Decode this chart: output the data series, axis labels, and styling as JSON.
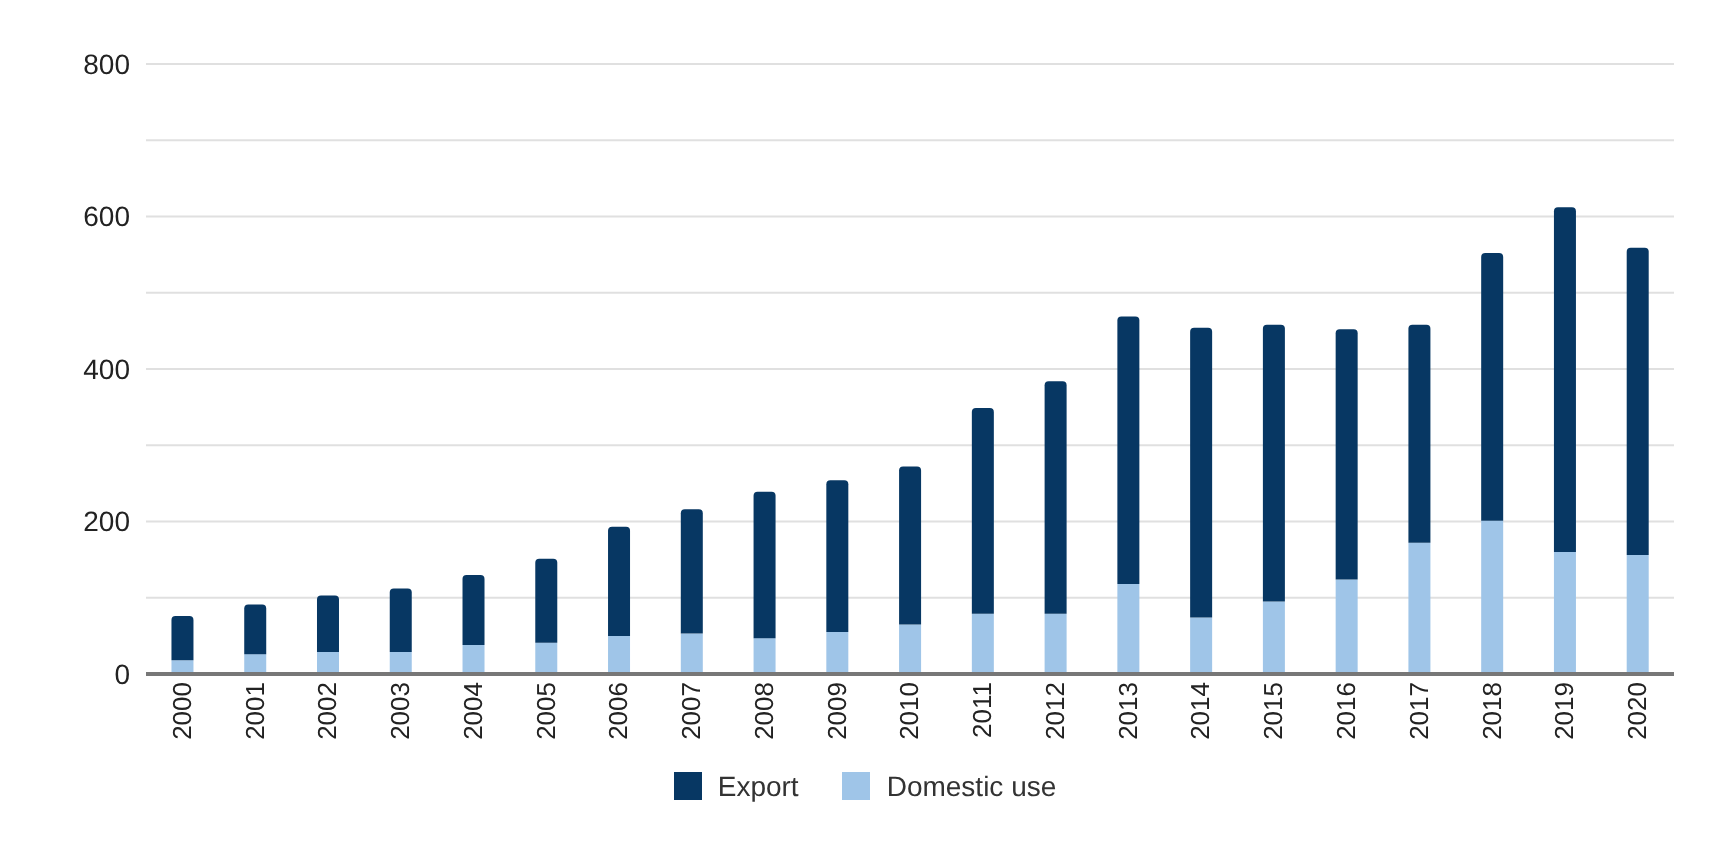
{
  "chart_data": {
    "type": "bar",
    "stacked": true,
    "categories": [
      "2000",
      "2001",
      "2002",
      "2003",
      "2004",
      "2005",
      "2006",
      "2007",
      "2008",
      "2009",
      "2010",
      "2011",
      "2012",
      "2013",
      "2014",
      "2015",
      "2016",
      "2017",
      "2018",
      "2019",
      "2020"
    ],
    "series": [
      {
        "name": "Domestic use",
        "color": "#9fc5e8",
        "values": [
          18,
          26,
          29,
          29,
          38,
          41,
          50,
          53,
          47,
          55,
          65,
          79,
          79,
          118,
          74,
          95,
          124,
          172,
          201,
          160,
          156
        ]
      },
      {
        "name": "Export",
        "color": "#073763",
        "values": [
          58,
          65,
          74,
          83,
          92,
          110,
          143,
          163,
          192,
          199,
          207,
          270,
          305,
          351,
          380,
          363,
          328,
          286,
          351,
          452,
          403
        ]
      }
    ],
    "ylim": [
      0,
      800
    ],
    "yticks": [
      0,
      {
        "value": 100,
        "label": null
      },
      200,
      {
        "value": 300,
        "label": null
      },
      400,
      {
        "value": 500,
        "label": null
      },
      600,
      {
        "value": 700,
        "label": null
      },
      800
    ],
    "grid": "y",
    "legend": "bottom"
  }
}
